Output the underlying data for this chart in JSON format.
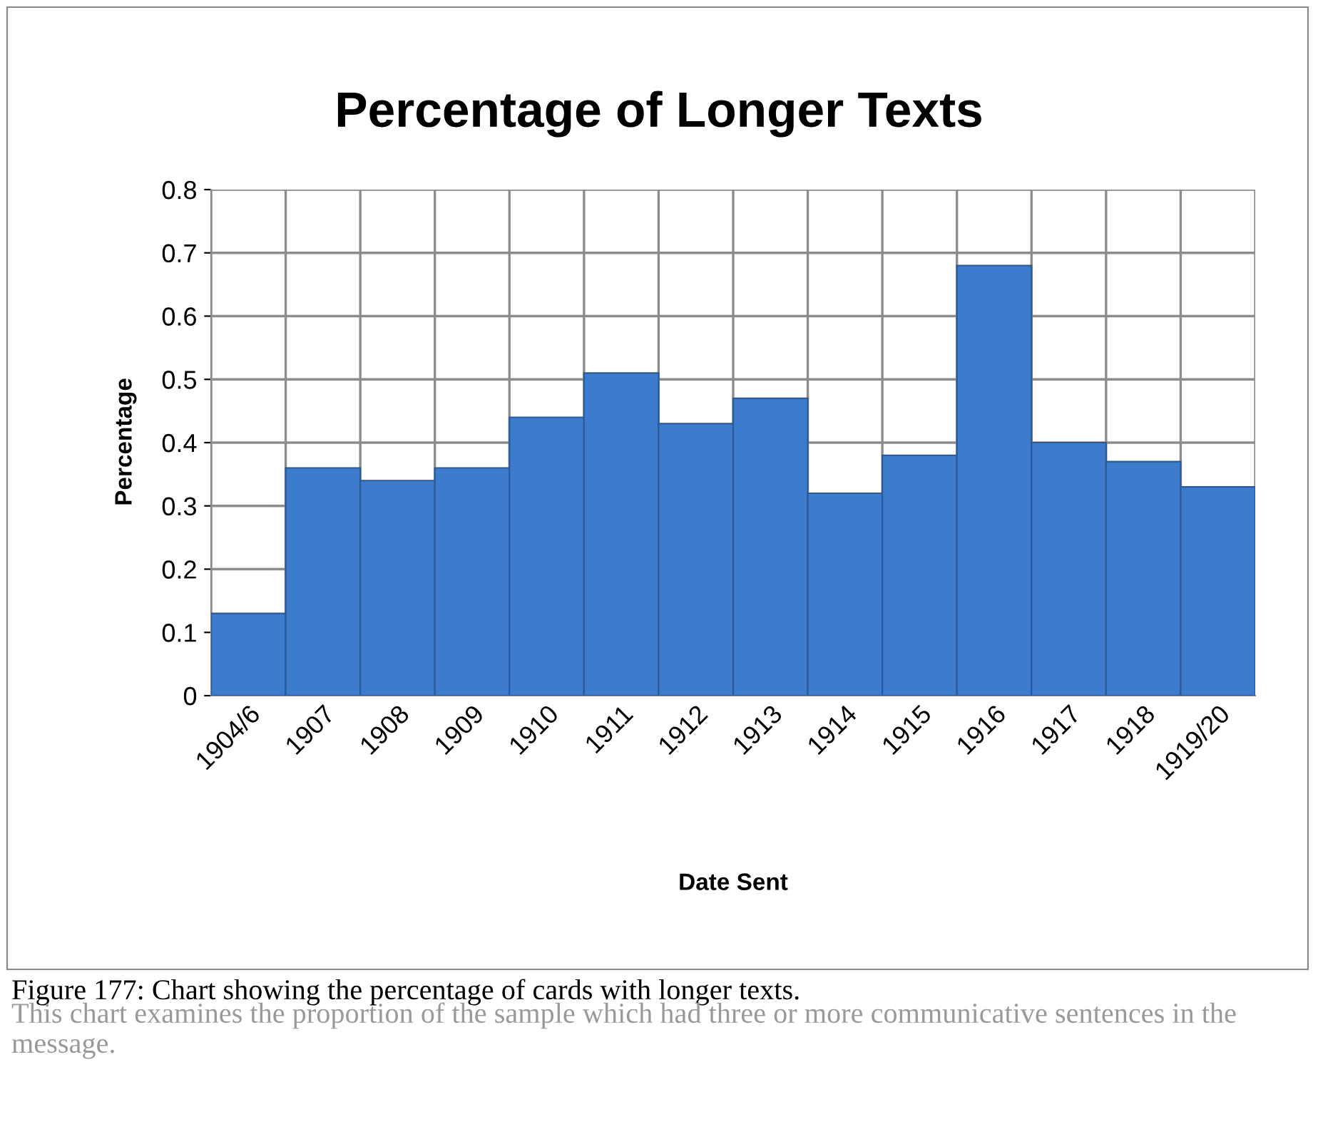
{
  "chart_data": {
    "type": "bar",
    "title": "Percentage of Longer Texts",
    "xlabel": "Date Sent",
    "ylabel": "Percentage",
    "categories": [
      "1904/6",
      "1907",
      "1908",
      "1909",
      "1910",
      "1911",
      "1912",
      "1913",
      "1914",
      "1915",
      "1916",
      "1917",
      "1918",
      "1919/20"
    ],
    "values": [
      0.13,
      0.36,
      0.34,
      0.36,
      0.44,
      0.51,
      0.43,
      0.47,
      0.32,
      0.38,
      0.68,
      0.4,
      0.37,
      0.33
    ],
    "color": "#3d7ccc",
    "ylim": [
      0,
      0.8
    ],
    "yticks": [
      {
        "value": 0,
        "label": "0"
      },
      0.1,
      0.2,
      0.3,
      0.4,
      0.5,
      0.6,
      0.7,
      0.8
    ],
    "grid": true,
    "annotations": [
      "Figure 177: Chart showing the percentage of cards with longer texts.",
      "This chart examines the proportion of the sample which had three or more communicative sentences in the message."
    ]
  }
}
